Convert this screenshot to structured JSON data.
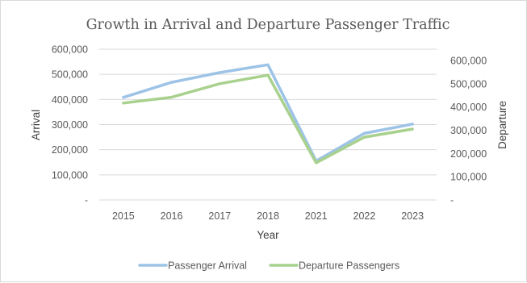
{
  "chart_data": {
    "type": "line",
    "title": "Growth in Arrival and Departure Passenger Traffic",
    "xlabel": "Year",
    "ylabel_left": "Arrival",
    "ylabel_right": "Departure",
    "categories": [
      "2015",
      "2016",
      "2017",
      "2018",
      "2021",
      "2022",
      "2023"
    ],
    "y_left": {
      "range": [
        0,
        600000
      ],
      "ticks": [
        0,
        100000,
        200000,
        300000,
        400000,
        500000,
        600000
      ],
      "tick_labels": [
        "-",
        "100,000",
        "200,000",
        "300,000",
        "400,000",
        "500,000",
        "600,000"
      ]
    },
    "y_right": {
      "range": [
        0,
        600000
      ],
      "ticks": [
        0,
        100000,
        200000,
        300000,
        400000,
        500000,
        600000
      ],
      "tick_labels": [
        "-",
        "100,000",
        "200,000",
        "300,000",
        "400,000",
        "500,000",
        "600,000"
      ]
    },
    "series": [
      {
        "name": "Passenger Arrival",
        "axis": "left",
        "color": "#9dc3e6",
        "values": [
          408000,
          468000,
          507000,
          538000,
          155000,
          265000,
          302000
        ]
      },
      {
        "name": "Departure Passengers",
        "axis": "right",
        "color": "#a9d18e",
        "values": [
          417000,
          442000,
          500000,
          537000,
          160000,
          270000,
          305000
        ]
      }
    ],
    "grid": true,
    "legend": "bottom"
  }
}
